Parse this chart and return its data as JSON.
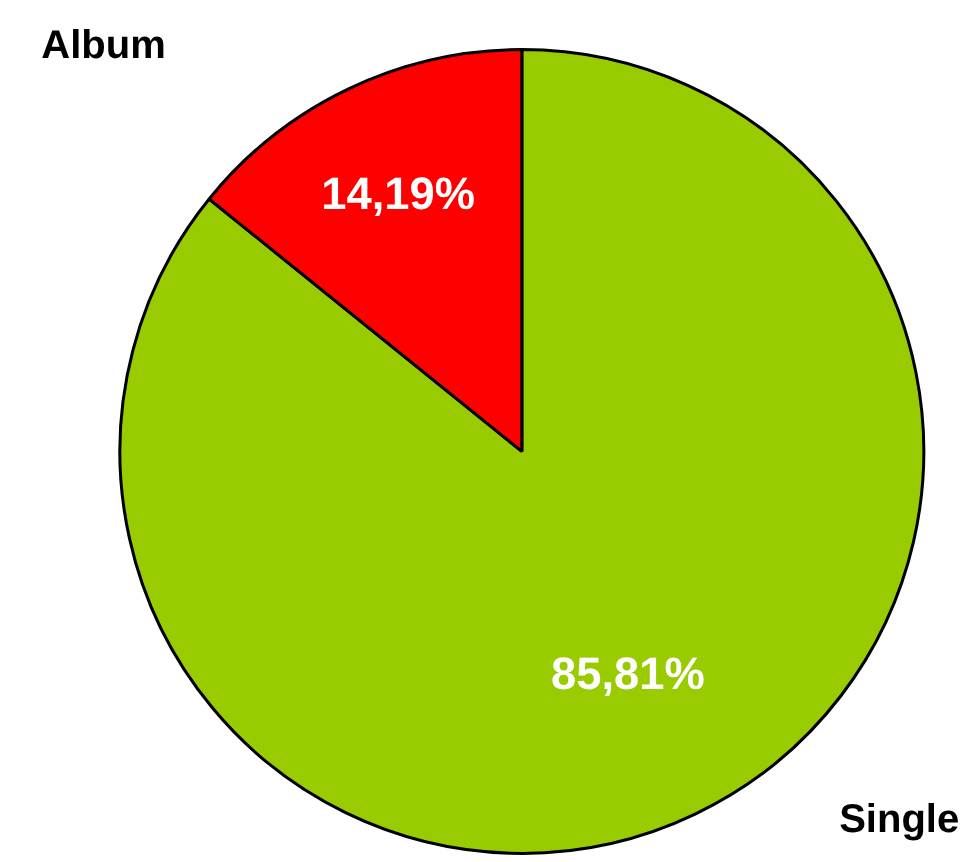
{
  "chart_data": {
    "type": "pie",
    "categories": [
      "Single",
      "Album"
    ],
    "values": [
      85.81,
      14.19
    ],
    "colors": [
      "#99cc00",
      "#ff0000"
    ],
    "value_labels": [
      "85,81%",
      "14,19%"
    ]
  }
}
